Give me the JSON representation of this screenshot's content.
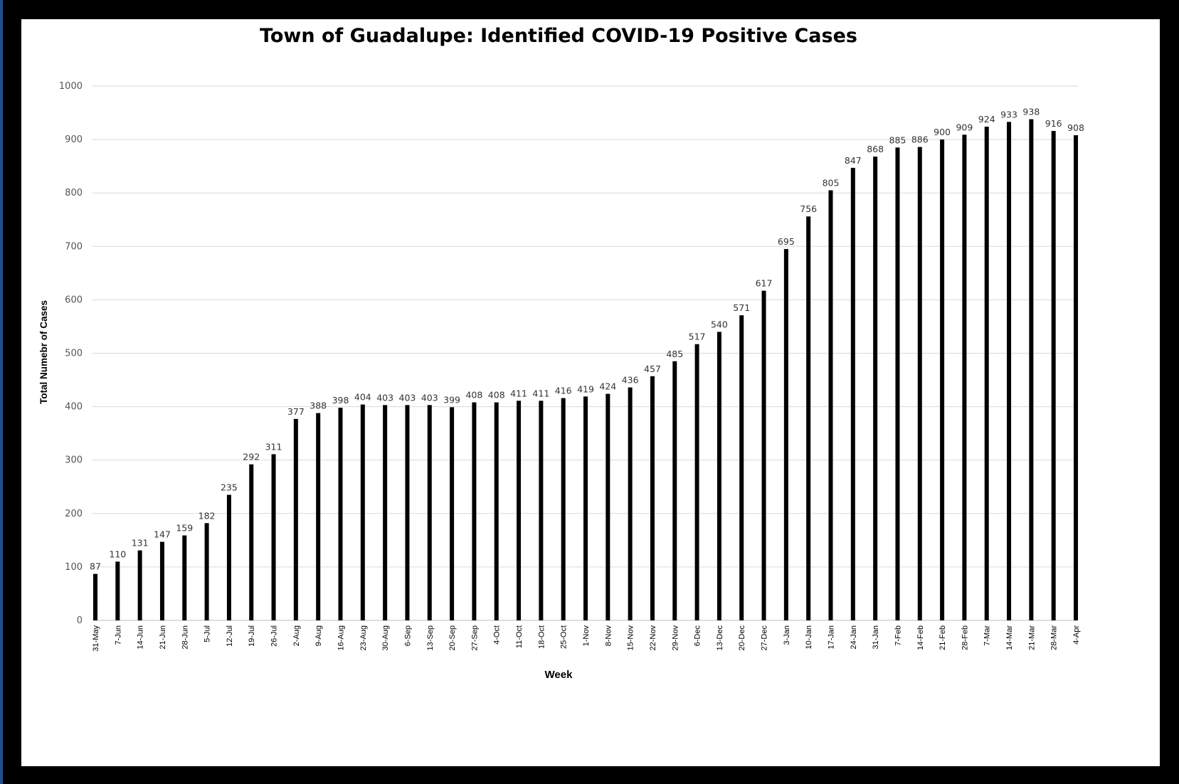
{
  "chart_data": {
    "type": "bar",
    "title": "Town of Guadalupe:   Identified COVID-19 Positive Cases",
    "xlabel": "Week",
    "ylabel": "Total Numebr of Cases",
    "ylim": [
      0,
      1000
    ],
    "yticks": [
      0,
      100,
      200,
      300,
      400,
      500,
      600,
      700,
      800,
      900,
      1000
    ],
    "grid": true,
    "legend": "none",
    "bar_color": "#000000",
    "categories": [
      "31-May",
      "7-Jun",
      "14-Jun",
      "21-Jun",
      "28-Jun",
      "5-Jul",
      "12-Jul",
      "19-Jul",
      "26-Jul",
      "2-Aug",
      "9-Aug",
      "16-Aug",
      "23-Aug",
      "30-Aug",
      "6-Sep",
      "13-Sep",
      "20-Sep",
      "27-Sep",
      "4-Oct",
      "11-Oct",
      "18-Oct",
      "25-Oct",
      "1-Nov",
      "8-Nov",
      "15-Nov",
      "22-Nov",
      "29-Nov",
      "6-Dec",
      "13-Dec",
      "20-Dec",
      "27-Dec",
      "3-Jan",
      "10-Jan",
      "17-Jan",
      "24-Jan",
      "31-Jan",
      "7-Feb",
      "14-Feb",
      "21-Feb",
      "28-Feb",
      "7-Mar",
      "14-Mar",
      "21-Mar",
      "28-Mar",
      "4-Apr"
    ],
    "values": [
      87,
      110,
      131,
      147,
      159,
      182,
      235,
      292,
      311,
      377,
      388,
      398,
      404,
      403,
      403,
      403,
      399,
      408,
      408,
      411,
      411,
      416,
      419,
      424,
      436,
      457,
      485,
      517,
      540,
      571,
      617,
      695,
      756,
      805,
      847,
      868,
      885,
      886,
      900,
      909,
      924,
      933,
      938,
      916,
      908
    ]
  }
}
